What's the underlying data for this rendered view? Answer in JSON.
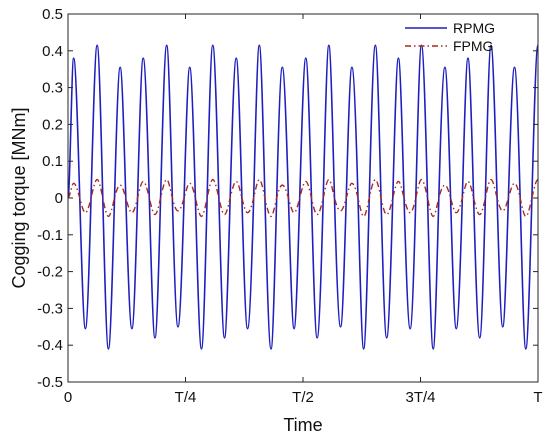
{
  "chart_data": {
    "type": "line",
    "xlabel": "Time",
    "ylabel": "Cogging torque [MNm]",
    "xlim": [
      0,
      1
    ],
    "ylim": [
      -0.5,
      0.5
    ],
    "x_ticks": [
      {
        "value": 0,
        "label": "0"
      },
      {
        "value": 0.25,
        "label": "T/4"
      },
      {
        "value": 0.5,
        "label": "T/2"
      },
      {
        "value": 0.75,
        "label": "3T/4"
      },
      {
        "value": 1,
        "label": "T"
      }
    ],
    "y_ticks": [
      {
        "value": -0.5,
        "label": "-0.5"
      },
      {
        "value": -0.4,
        "label": "-0.4"
      },
      {
        "value": -0.3,
        "label": "-0.3"
      },
      {
        "value": -0.2,
        "label": "-0.2"
      },
      {
        "value": -0.1,
        "label": "-0.1"
      },
      {
        "value": 0,
        "label": "0"
      },
      {
        "value": 0.1,
        "label": "0.1"
      },
      {
        "value": 0.2,
        "label": "0.2"
      },
      {
        "value": 0.3,
        "label": "0.3"
      },
      {
        "value": 0.4,
        "label": "0.4"
      },
      {
        "value": 0.5,
        "label": "0.5"
      }
    ],
    "grid": false,
    "legend": {
      "position": "top-right"
    },
    "series": [
      {
        "name": "RPMG",
        "color": "#1f1fbf",
        "style": "solid",
        "x": [
          0,
          0.012,
          0.025,
          0.037,
          0.049,
          0.062,
          0.074,
          0.086,
          0.099,
          0.111,
          0.123,
          0.136,
          0.148,
          0.16,
          0.173,
          0.185,
          0.197,
          0.21,
          0.222,
          0.234,
          0.247,
          0.259,
          0.271,
          0.284,
          0.296,
          0.308,
          0.321,
          0.333,
          0.345,
          0.358,
          0.37,
          0.382,
          0.395,
          0.407,
          0.419,
          0.432,
          0.444,
          0.456,
          0.469,
          0.481,
          0.493,
          0.506,
          0.518,
          0.53,
          0.543,
          0.555,
          0.567,
          0.58,
          0.592,
          0.604,
          0.617,
          0.629,
          0.641,
          0.654,
          0.666,
          0.678,
          0.691,
          0.703,
          0.715,
          0.728,
          0.74,
          0.752,
          0.765,
          0.777,
          0.789,
          0.802,
          0.814,
          0.826,
          0.839,
          0.851,
          0.863,
          0.876,
          0.888,
          0.9,
          0.913,
          0.925,
          0.937,
          0.95,
          0.962,
          0.974,
          0.987,
          1.0
        ],
        "y": [
          0.0,
          0.38,
          0.0,
          -0.355,
          0.0,
          0.415,
          0.0,
          -0.41,
          0.0,
          0.355,
          0.0,
          -0.355,
          0.0,
          0.38,
          0.0,
          -0.38,
          0.0,
          0.415,
          0.0,
          -0.35,
          0.0,
          0.355,
          0.0,
          -0.41,
          0.0,
          0.415,
          0.0,
          -0.38,
          0.0,
          0.38,
          0.0,
          -0.355,
          0.0,
          0.415,
          0.0,
          -0.41,
          0.0,
          0.355,
          0.0,
          -0.355,
          0.0,
          0.38,
          0.0,
          -0.38,
          0.0,
          0.415,
          0.0,
          -0.35,
          0.0,
          0.355,
          0.0,
          -0.41,
          0.0,
          0.415,
          0.0,
          -0.38,
          0.0,
          0.38,
          0.0,
          -0.355,
          0.0,
          0.415,
          0.0,
          -0.41,
          0.0,
          0.355,
          0.0,
          -0.355,
          0.0,
          0.38,
          0.0,
          -0.38,
          0.0,
          0.415,
          0.0,
          -0.35,
          0.0,
          0.355,
          0.0,
          -0.41,
          0.0,
          0.415
        ]
      },
      {
        "name": "FPMG",
        "color": "#a82a1a",
        "style": "dash-dot",
        "x": [
          0,
          0.012,
          0.025,
          0.037,
          0.049,
          0.062,
          0.074,
          0.086,
          0.099,
          0.111,
          0.123,
          0.136,
          0.148,
          0.16,
          0.173,
          0.185,
          0.197,
          0.21,
          0.222,
          0.234,
          0.247,
          0.259,
          0.271,
          0.284,
          0.296,
          0.308,
          0.321,
          0.333,
          0.345,
          0.358,
          0.37,
          0.382,
          0.395,
          0.407,
          0.419,
          0.432,
          0.444,
          0.456,
          0.469,
          0.481,
          0.493,
          0.506,
          0.518,
          0.53,
          0.543,
          0.555,
          0.567,
          0.58,
          0.592,
          0.604,
          0.617,
          0.629,
          0.641,
          0.654,
          0.666,
          0.678,
          0.691,
          0.703,
          0.715,
          0.728,
          0.74,
          0.752,
          0.765,
          0.777,
          0.789,
          0.802,
          0.814,
          0.826,
          0.839,
          0.851,
          0.863,
          0.876,
          0.888,
          0.9,
          0.913,
          0.925,
          0.937,
          0.95,
          0.962,
          0.974,
          0.987,
          1.0
        ],
        "y": [
          0.0,
          0.04,
          0.0,
          -0.04,
          0.0,
          0.05,
          0.0,
          -0.05,
          0.0,
          0.035,
          0.0,
          -0.04,
          0.0,
          0.045,
          0.0,
          -0.045,
          0.0,
          0.05,
          0.0,
          -0.035,
          0.0,
          0.04,
          0.0,
          -0.05,
          0.0,
          0.05,
          0.0,
          -0.045,
          0.0,
          0.045,
          0.0,
          -0.04,
          0.0,
          0.05,
          0.0,
          -0.05,
          0.0,
          0.035,
          0.0,
          -0.04,
          0.0,
          0.045,
          0.0,
          -0.045,
          0.0,
          0.05,
          0.0,
          -0.035,
          0.0,
          0.04,
          0.0,
          -0.05,
          0.0,
          0.05,
          0.0,
          -0.045,
          0.0,
          0.045,
          0.0,
          -0.04,
          0.0,
          0.05,
          0.0,
          -0.05,
          0.0,
          0.035,
          0.0,
          -0.04,
          0.0,
          0.045,
          0.0,
          -0.045,
          0.0,
          0.05,
          0.0,
          -0.035,
          0.0,
          0.04,
          0.0,
          -0.05,
          0.0,
          0.05
        ]
      }
    ]
  }
}
